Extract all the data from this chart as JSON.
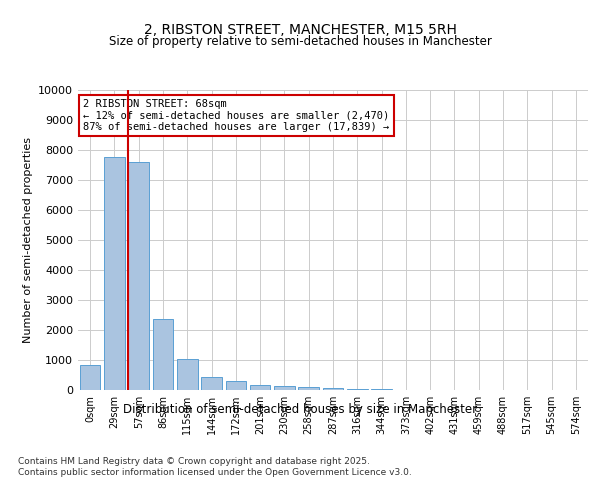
{
  "title_line1": "2, RIBSTON STREET, MANCHESTER, M15 5RH",
  "title_line2": "Size of property relative to semi-detached houses in Manchester",
  "xlabel": "Distribution of semi-detached houses by size in Manchester",
  "ylabel": "Number of semi-detached properties",
  "footnote": "Contains HM Land Registry data © Crown copyright and database right 2025.\nContains public sector information licensed under the Open Government Licence v3.0.",
  "bar_labels": [
    "0sqm",
    "29sqm",
    "57sqm",
    "86sqm",
    "115sqm",
    "144sqm",
    "172sqm",
    "201sqm",
    "230sqm",
    "258sqm",
    "287sqm",
    "316sqm",
    "344sqm",
    "373sqm",
    "402sqm",
    "431sqm",
    "459sqm",
    "488sqm",
    "517sqm",
    "545sqm",
    "574sqm"
  ],
  "bar_values": [
    830,
    7780,
    7600,
    2360,
    1020,
    440,
    290,
    155,
    120,
    90,
    65,
    50,
    30,
    10,
    5,
    0,
    0,
    0,
    0,
    0,
    0
  ],
  "bar_color": "#aac4e0",
  "bar_edge_color": "#5a9fd4",
  "property_label": "2 RIBSTON STREET: 68sqm",
  "pct_smaller": 12,
  "pct_larger": 87,
  "count_smaller": 2470,
  "count_larger": 17839,
  "vline_color": "#cc0000",
  "annotation_box_color": "#cc0000",
  "ylim": [
    0,
    10000
  ],
  "yticks": [
    0,
    1000,
    2000,
    3000,
    4000,
    5000,
    6000,
    7000,
    8000,
    9000,
    10000
  ],
  "background_color": "#ffffff",
  "grid_color": "#cccccc",
  "vline_x": 1.575
}
